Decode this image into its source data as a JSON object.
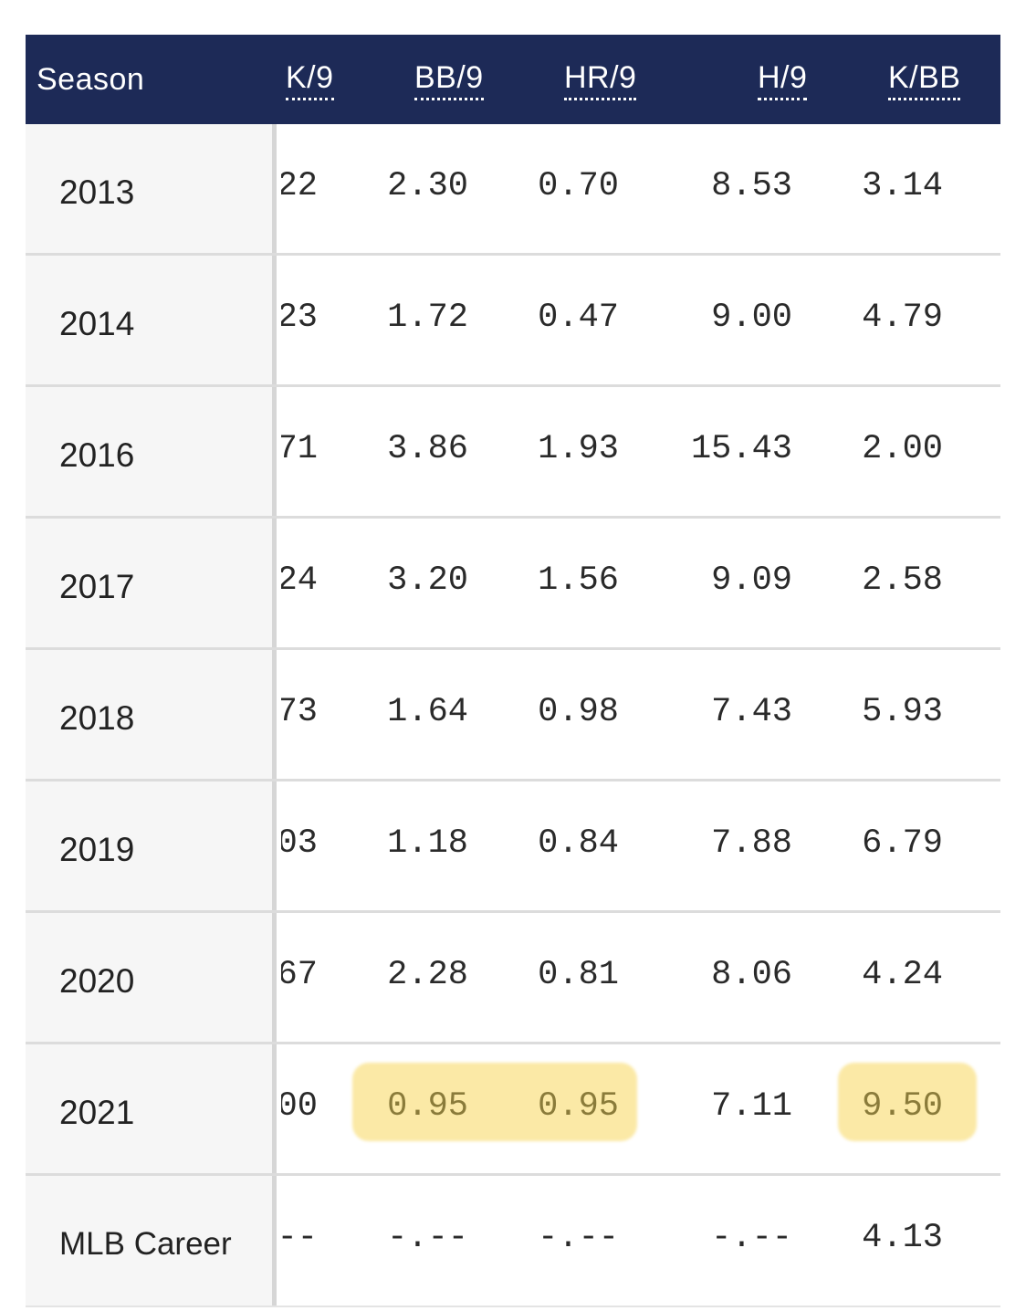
{
  "header": {
    "season": "Season",
    "k9": "K/9",
    "bb9": "BB/9",
    "hr9": "HR/9",
    "h9": "H/9",
    "kbb": "K/BB"
  },
  "rows": [
    {
      "season": "2013",
      "k9": "22",
      "bb9": "2.30",
      "hr9": "0.70",
      "h9": "8.53",
      "kbb": "3.14"
    },
    {
      "season": "2014",
      "k9": "23",
      "bb9": "1.72",
      "hr9": "0.47",
      "h9": "9.00",
      "kbb": "4.79"
    },
    {
      "season": "2016",
      "k9": "71",
      "bb9": "3.86",
      "hr9": "1.93",
      "h9": "15.43",
      "kbb": "2.00"
    },
    {
      "season": "2017",
      "k9": "24",
      "bb9": "3.20",
      "hr9": "1.56",
      "h9": "9.09",
      "kbb": "2.58"
    },
    {
      "season": "2018",
      "k9": "73",
      "bb9": "1.64",
      "hr9": "0.98",
      "h9": "7.43",
      "kbb": "5.93"
    },
    {
      "season": "2019",
      "k9": "03",
      "bb9": "1.18",
      "hr9": "0.84",
      "h9": "7.88",
      "kbb": "6.79"
    },
    {
      "season": "2020",
      "k9": "67",
      "bb9": "2.28",
      "hr9": "0.81",
      "h9": "8.06",
      "kbb": "4.24"
    },
    {
      "season": "2021",
      "k9": "00",
      "bb9": "0.95",
      "hr9": "0.95",
      "h9": "7.11",
      "kbb": "9.50"
    },
    {
      "season": "MLB Career",
      "k9": "--",
      "bb9": "-.--",
      "hr9": "-.--",
      "h9": "-.--",
      "kbb": "4.13"
    }
  ],
  "colors": {
    "header_bg": "#1d2a57",
    "highlight": "#fbe9a6"
  }
}
